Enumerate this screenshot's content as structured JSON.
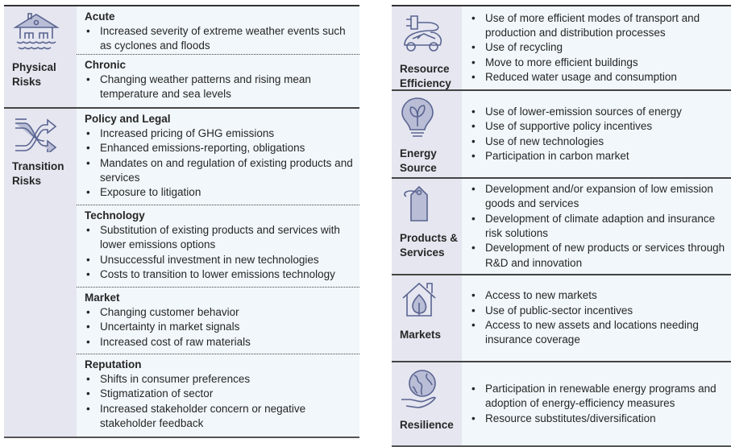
{
  "risks": [
    {
      "label": "Physical Risks",
      "icon": "flooded-house-icon",
      "subsections": [
        {
          "title": "Acute",
          "items": [
            "Increased severity of extreme weather events such as cyclones and floods"
          ]
        },
        {
          "title": "Chronic",
          "items": [
            "Changing weather patterns and rising mean temperature and sea levels"
          ]
        }
      ]
    },
    {
      "label": "Transition Risks",
      "icon": "crossing-arrows-icon",
      "subsections": [
        {
          "title": "Policy and Legal",
          "items": [
            "Increased pricing of GHG emissions",
            "Enhanced emissions-reporting, obligations",
            "Mandates on and regulation of existing products and services",
            "Exposure to litigation"
          ]
        },
        {
          "title": "Technology",
          "items": [
            "Substitution of existing products and services with lower emissions options",
            "Unsuccessful investment in new technologies",
            "Costs to transition to lower emissions technology"
          ]
        },
        {
          "title": "Market",
          "items": [
            "Changing customer behavior",
            "Uncertainty in market signals",
            "Increased cost of raw materials"
          ]
        },
        {
          "title": "Reputation",
          "items": [
            "Shifts in consumer preferences",
            "Stigmatization of sector",
            "Increased stakeholder concern or negative stakeholder feedback"
          ]
        }
      ]
    }
  ],
  "opportunities": [
    {
      "label": "Resource Efficiency",
      "icon": "electric-car-icon",
      "items": [
        "Use of more efficient modes of transport and production and distribution processes",
        "Use of recycling",
        "Move to more efficient buildings",
        "Reduced water usage and consumption"
      ]
    },
    {
      "label": "Energy Source",
      "icon": "lightbulb-leaf-icon",
      "items": [
        "Use of lower-emission sources of energy",
        "Use of supportive policy incentives",
        "Use of new technologies",
        "Participation in carbon market"
      ]
    },
    {
      "label": "Products & Services",
      "icon": "tag-icon",
      "items": [
        "Development and/or expansion of low emission goods and services",
        "Development of climate adaption and insurance risk solutions",
        "Development of new products or services through R&D and innovation"
      ]
    },
    {
      "label": "Markets",
      "icon": "house-leaf-icon",
      "items": [
        "Access to new markets",
        "Use of public-sector incentives",
        "Access to new assets and locations needing insurance coverage"
      ]
    },
    {
      "label": "Resilience",
      "icon": "globe-hand-icon",
      "items": [
        "Participation in renewable energy programs and adoption of energy-efficiency measures",
        "Resource substitutes/diversification"
      ]
    }
  ],
  "colors": {
    "label_bg": "#e5e6f0",
    "content_bg": "#f1f7fb",
    "icon": "#5a6490",
    "icon_fill": "#b9bdd6"
  }
}
